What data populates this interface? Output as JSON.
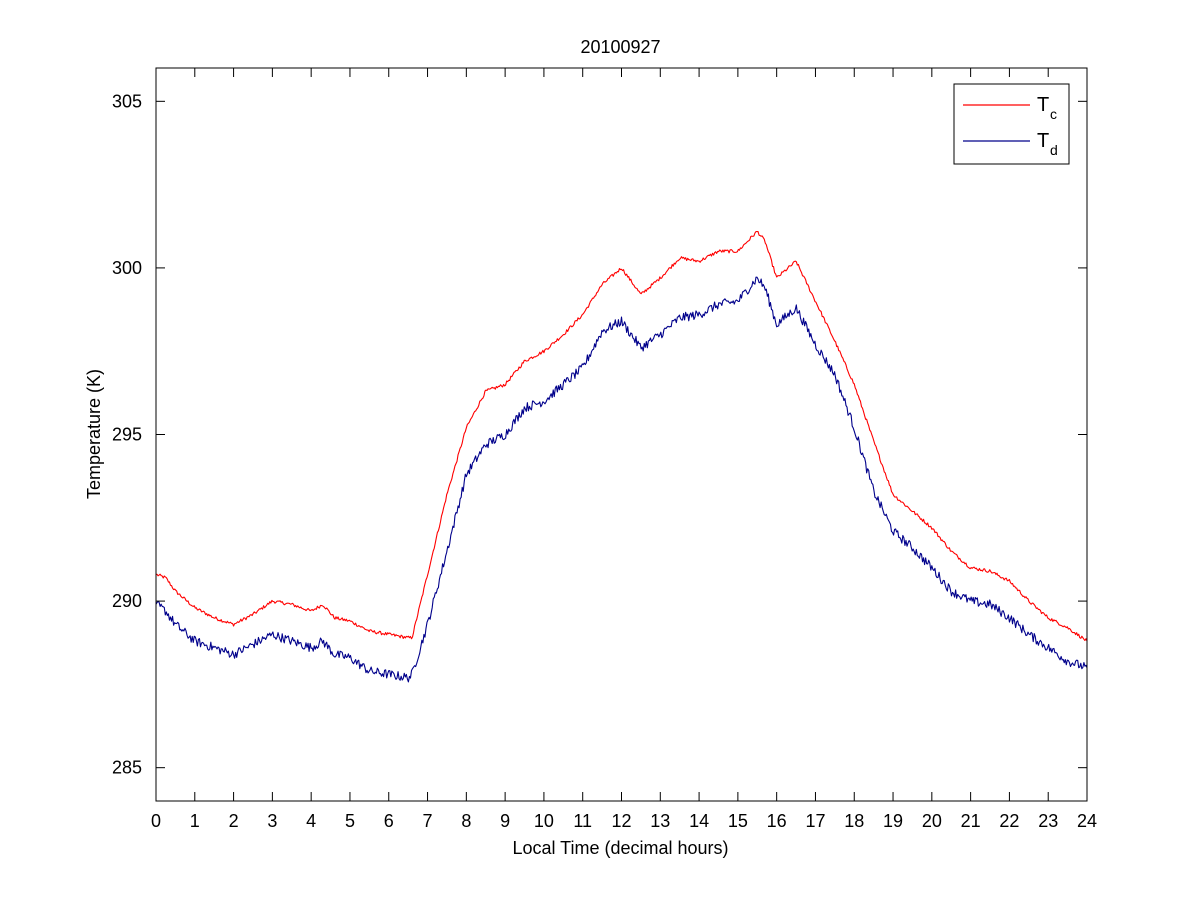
{
  "chart_data": {
    "type": "line",
    "title": "20100927",
    "xlabel": "Local Time (decimal hours)",
    "ylabel": "Temperature (K)",
    "xlim": [
      0,
      24
    ],
    "ylim": [
      284,
      306
    ],
    "xticks": [
      0,
      1,
      2,
      3,
      4,
      5,
      6,
      7,
      8,
      9,
      10,
      11,
      12,
      13,
      14,
      15,
      16,
      17,
      18,
      19,
      20,
      21,
      22,
      23,
      24
    ],
    "yticks": [
      285,
      290,
      295,
      300,
      305
    ],
    "x_tick_labels": [
      "0",
      "1",
      "2",
      "3",
      "4",
      "5",
      "6",
      "7",
      "8",
      "9",
      "10",
      "11",
      "12",
      "13",
      "14",
      "15",
      "16",
      "17",
      "18",
      "19",
      "20",
      "21",
      "22",
      "23",
      "24"
    ],
    "y_tick_labels": [
      "285",
      "290",
      "295",
      "300",
      "305"
    ],
    "grid": false,
    "legend_position": "top-right",
    "colors": {
      "Tc": "#ff0000",
      "Td": "#00008b"
    },
    "series": [
      {
        "name": "Tc",
        "legend_main": "T",
        "legend_sub": "c",
        "color": "#ff0000",
        "x": [
          0,
          0.25,
          0.5,
          1,
          1.5,
          2,
          2.5,
          3,
          3.5,
          4,
          4.3,
          4.6,
          5,
          5.5,
          6,
          6.5,
          6.6,
          7,
          7.5,
          8,
          8.5,
          9,
          9.5,
          10,
          10.5,
          11,
          11.5,
          12,
          12.5,
          13,
          13.5,
          14,
          14.5,
          15,
          15.5,
          15.7,
          16,
          16.5,
          17,
          17.5,
          18,
          18.5,
          19,
          19.5,
          20,
          20.5,
          21,
          21.5,
          22,
          22.5,
          23,
          23.5,
          24
        ],
        "y": [
          290.8,
          290.7,
          290.3,
          289.8,
          289.5,
          289.3,
          289.6,
          290.0,
          289.9,
          289.7,
          289.9,
          289.5,
          289.4,
          289.1,
          289.0,
          288.9,
          288.9,
          290.8,
          293.2,
          295.2,
          296.3,
          296.5,
          297.2,
          297.5,
          298.0,
          298.6,
          299.5,
          300.0,
          299.2,
          299.7,
          300.3,
          300.2,
          300.5,
          300.5,
          301.1,
          300.8,
          299.7,
          300.2,
          299.0,
          297.8,
          296.5,
          294.8,
          293.2,
          292.7,
          292.2,
          291.5,
          291.0,
          290.9,
          290.6,
          290.0,
          289.5,
          289.2,
          288.8
        ]
      },
      {
        "name": "Td",
        "legend_main": "T",
        "legend_sub": "d",
        "color": "#00008b",
        "x": [
          0,
          0.25,
          0.5,
          1,
          1.5,
          2,
          2.5,
          3,
          3.5,
          4,
          4.3,
          4.6,
          5,
          5.5,
          6,
          6.5,
          6.6,
          7,
          7.5,
          8,
          8.5,
          9,
          9.5,
          10,
          10.5,
          11,
          11.5,
          12,
          12.5,
          13,
          13.5,
          14,
          14.5,
          15,
          15.5,
          15.7,
          16,
          16.5,
          17,
          17.5,
          18,
          18.5,
          19,
          19.5,
          20,
          20.5,
          21,
          21.5,
          22,
          22.5,
          23,
          23.5,
          24
        ],
        "y": [
          289.9,
          289.7,
          289.3,
          288.8,
          288.6,
          288.4,
          288.7,
          289.0,
          288.8,
          288.6,
          288.8,
          288.4,
          288.3,
          287.9,
          287.8,
          287.7,
          287.8,
          289.3,
          291.5,
          293.8,
          294.7,
          295.0,
          295.8,
          296.0,
          296.5,
          297.0,
          298.1,
          298.4,
          297.6,
          298.0,
          298.5,
          298.6,
          298.9,
          299.0,
          299.7,
          299.4,
          298.3,
          298.8,
          297.7,
          296.8,
          295.2,
          293.3,
          292.1,
          291.6,
          291.0,
          290.3,
          290.0,
          289.9,
          289.5,
          289.0,
          288.6,
          288.2,
          288.0
        ]
      }
    ]
  }
}
